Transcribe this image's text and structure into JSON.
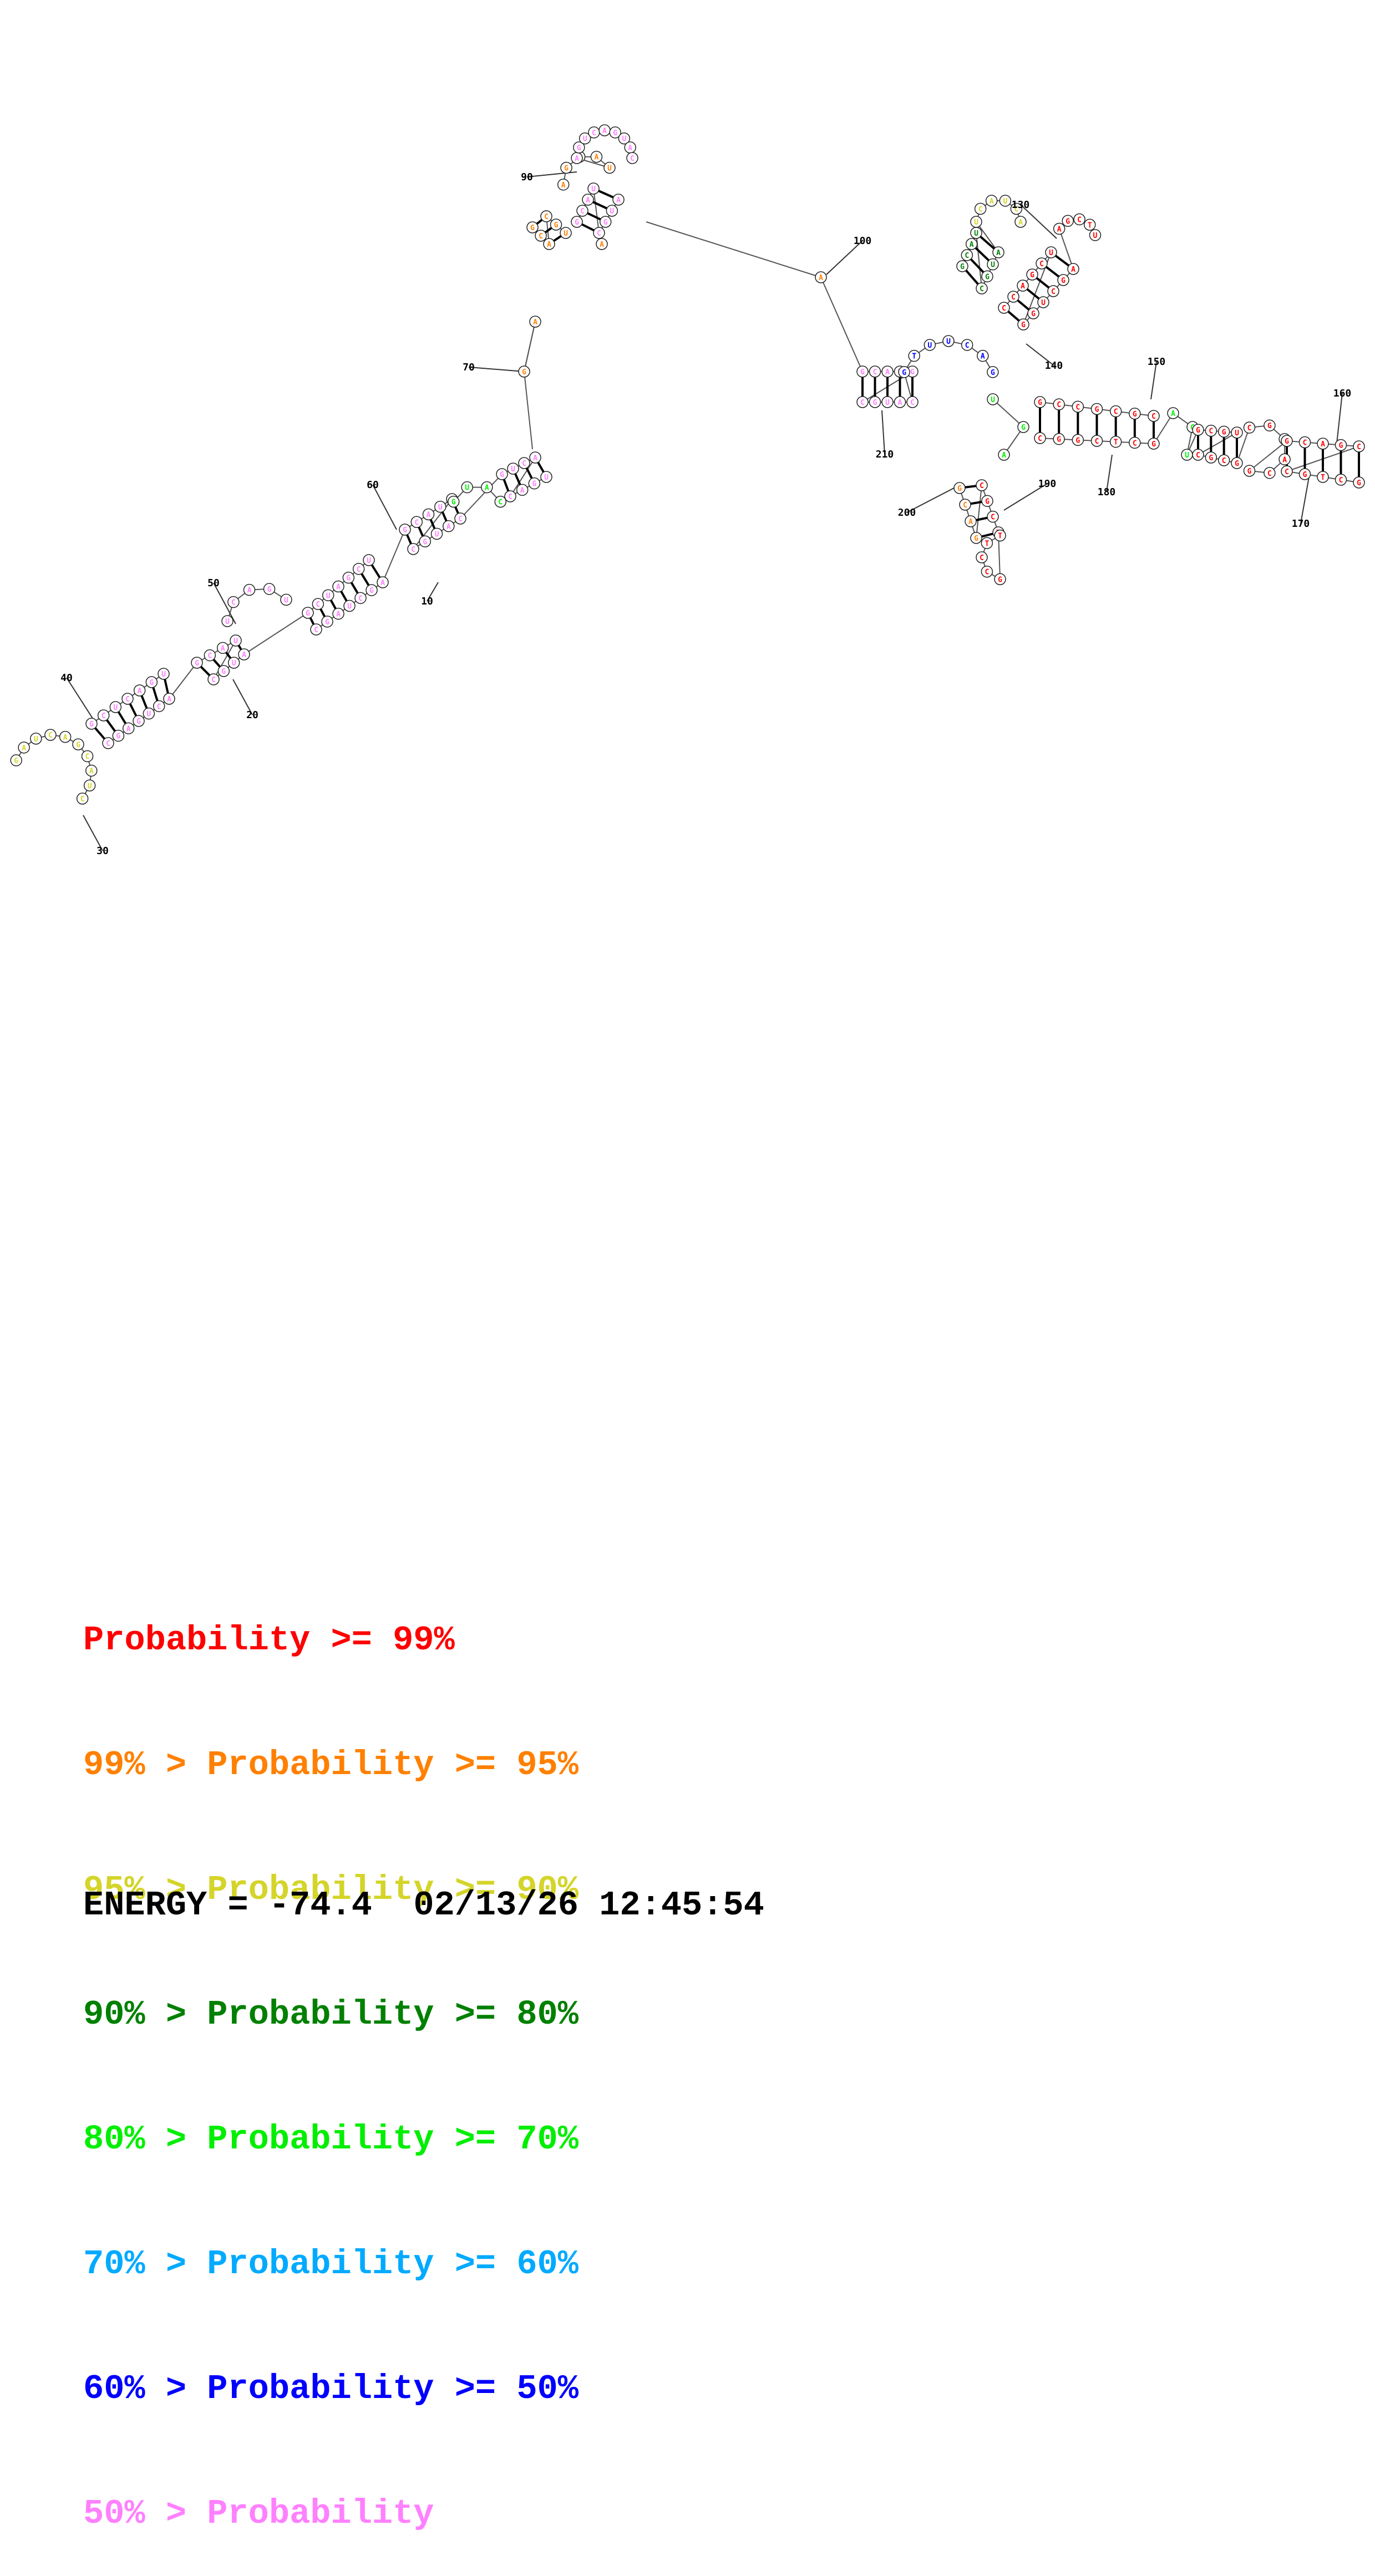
{
  "colors": {
    "p99": "#ff0000",
    "p95": "#ff8000",
    "p90": "#d4d42a",
    "p80": "#008000",
    "p70": "#00ee00",
    "p60": "#00aaff",
    "p50": "#0000ff",
    "plow": "#ff80ff"
  },
  "position_labels": [
    "10",
    "20",
    "30",
    "40",
    "50",
    "60",
    "70",
    "90",
    "100",
    "130",
    "140",
    "150",
    "160",
    "170",
    "180",
    "190",
    "200",
    "210"
  ],
  "legend": [
    {
      "prefix": "",
      "text": "Probability >= 99%",
      "color_key": "p99"
    },
    {
      "prefix": "99% > ",
      "text": "Probability >= 95%",
      "color_key": "p95"
    },
    {
      "prefix": "95% > ",
      "text": "Probability >= 90%",
      "color_key": "p90"
    },
    {
      "prefix": "90% > ",
      "text": "Probability >= 80%",
      "color_key": "p80"
    },
    {
      "prefix": "80% > ",
      "text": "Probability >= 70%",
      "color_key": "p70"
    },
    {
      "prefix": "70% > ",
      "text": "Probability >= 60%",
      "color_key": "p60"
    },
    {
      "prefix": "60% > ",
      "text": "Probability >= 50%",
      "color_key": "p50"
    },
    {
      "prefix": "50% > ",
      "text": "Probability",
      "color_key": "plow"
    }
  ],
  "footer": {
    "energy_label": "ENERGY = ",
    "energy_value": "-74.4",
    "timestamp": "02/13/26 12:45:54"
  }
}
